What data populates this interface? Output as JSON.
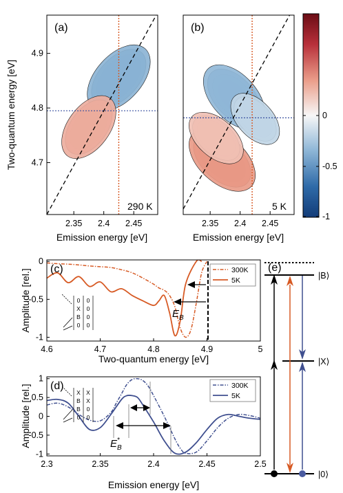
{
  "chart_data": [
    {
      "type": "heatmap",
      "panel": "(a)",
      "annotation": "290 K",
      "xlabel": "Emission energy [eV]",
      "ylabel": "Two-quantum energy [eV]",
      "xticks": [
        "2.35",
        "2.4",
        "2.45"
      ],
      "yticks": [
        "4.7",
        "4.8",
        "4.9"
      ],
      "xlim": [
        2.305,
        2.49
      ],
      "ylim": [
        4.605,
        4.97
      ],
      "guides": {
        "horizontal": 4.795,
        "vertical": 2.425
      },
      "peaks": [
        {
          "x": 2.425,
          "y": 4.855,
          "value": -1.0
        },
        {
          "x": 2.375,
          "y": 4.765,
          "value": 0.8
        }
      ]
    },
    {
      "type": "heatmap",
      "panel": "(b)",
      "annotation": "5 K",
      "xlabel": "Emission energy [eV]",
      "xticks": [
        "2.35",
        "2.4",
        "2.45"
      ],
      "xlim": [
        2.305,
        2.49
      ],
      "ylim": [
        4.605,
        4.97
      ],
      "guides": {
        "horizontal": 4.782,
        "vertical": 2.42
      },
      "peaks": [
        {
          "x": 2.39,
          "y": 4.82,
          "value": -0.95
        },
        {
          "x": 2.37,
          "y": 4.705,
          "value": 1.0
        },
        {
          "x": 2.36,
          "y": 4.745,
          "value": 0.6
        },
        {
          "x": 2.425,
          "y": 4.78,
          "value": -0.5
        }
      ]
    },
    {
      "type": "colorbar",
      "ticks": [
        "0",
        "-0.5",
        "-1"
      ],
      "range": [
        -1,
        1
      ]
    },
    {
      "type": "line",
      "panel": "(c)",
      "xlabel": "Two-quantum energy [eV]",
      "ylabel": "Amplitude [rel.]",
      "xticks": [
        "4.6",
        "4.7",
        "4.8",
        "4.9",
        "5"
      ],
      "yticks": [
        "0",
        "-0.5",
        "-1"
      ],
      "xlim": [
        4.6,
        5.0
      ],
      "ylim": [
        -1.05,
        0.02
      ],
      "annotation": "E_B",
      "marker_x": 4.84,
      "series": [
        {
          "name": "300K",
          "style": "dash-dot",
          "color": "#d75a24",
          "x": [
            4.6,
            4.62,
            4.65,
            4.68,
            4.7,
            4.72,
            4.74,
            4.76,
            4.78,
            4.8,
            4.81,
            4.82,
            4.83,
            4.84,
            4.85,
            4.86,
            4.87,
            4.88,
            4.89,
            4.9
          ],
          "y": [
            -0.02,
            -0.03,
            -0.04,
            -0.06,
            -0.07,
            -0.08,
            -0.11,
            -0.15,
            -0.22,
            -0.3,
            -0.35,
            -0.38,
            -0.45,
            -0.6,
            -0.88,
            -1.0,
            -0.9,
            -0.55,
            -0.15,
            0.0
          ]
        },
        {
          "name": "5K",
          "style": "solid",
          "color": "#d75a24",
          "x": [
            4.6,
            4.62,
            4.64,
            4.66,
            4.68,
            4.7,
            4.72,
            4.74,
            4.76,
            4.78,
            4.8,
            4.81,
            4.82,
            4.83,
            4.84,
            4.85,
            4.86,
            4.88,
            4.89
          ],
          "y": [
            -0.22,
            -0.15,
            -0.28,
            -0.2,
            -0.33,
            -0.27,
            -0.4,
            -0.36,
            -0.45,
            -0.52,
            -0.58,
            -0.52,
            -0.45,
            -0.68,
            -0.98,
            -0.78,
            -0.3,
            0.0,
            0.0
          ]
        }
      ]
    },
    {
      "type": "line",
      "panel": "(d)",
      "xlabel": "Emission energy [eV]",
      "ylabel": "Amplitude [rel.]",
      "xticks": [
        "2.3",
        "2.35",
        "2.4",
        "2.45",
        "2.5"
      ],
      "yticks": [
        "1",
        "0.5",
        "0",
        "-0.5",
        "-1"
      ],
      "xlim": [
        2.3,
        2.5
      ],
      "ylim": [
        -1.05,
        1.05
      ],
      "annotation": "E_B^*",
      "series": [
        {
          "name": "300K",
          "style": "dash-dot",
          "color": "#3f4f8f",
          "x": [
            2.3,
            2.31,
            2.32,
            2.33,
            2.34,
            2.35,
            2.36,
            2.365,
            2.37,
            2.375,
            2.38,
            2.385,
            2.39,
            2.395,
            2.4,
            2.41,
            2.42,
            2.425,
            2.43,
            2.44,
            2.45,
            2.46,
            2.47,
            2.48,
            2.49,
            2.5
          ],
          "y": [
            0.3,
            0.35,
            0.25,
            0.05,
            -0.1,
            -0.12,
            0.1,
            0.35,
            0.6,
            0.85,
            0.98,
            1.0,
            0.95,
            0.8,
            0.55,
            0.0,
            -0.6,
            -0.85,
            -0.98,
            -0.95,
            -0.65,
            -0.3,
            -0.05,
            0.05,
            0.02,
            -0.05
          ]
        },
        {
          "name": "5K",
          "style": "solid",
          "color": "#3f4f8f",
          "x": [
            2.3,
            2.31,
            2.32,
            2.33,
            2.34,
            2.35,
            2.36,
            2.37,
            2.375,
            2.38,
            2.385,
            2.39,
            2.4,
            2.41,
            2.42,
            2.43,
            2.44,
            2.45,
            2.46,
            2.47,
            2.48,
            2.49,
            2.5
          ],
          "y": [
            0.42,
            0.45,
            0.35,
            0.0,
            -0.35,
            -0.3,
            0.05,
            0.45,
            0.55,
            0.55,
            0.5,
            0.3,
            -0.15,
            -0.65,
            -0.98,
            -0.95,
            -0.7,
            -0.35,
            -0.05,
            0.05,
            0.0,
            -0.05,
            -0.08
          ]
        }
      ]
    },
    {
      "type": "diagram",
      "panel": "(e)",
      "levels": [
        "|B⟩",
        "|X⟩",
        "|0⟩"
      ]
    }
  ],
  "feynman": {
    "c_rows": [
      [
        "0",
        "0"
      ],
      [
        "X",
        "0"
      ],
      [
        "B",
        "0"
      ],
      [
        "0",
        "0"
      ]
    ],
    "d_rows": [
      [
        "X",
        "X"
      ],
      [
        "B",
        "X"
      ],
      [
        "B",
        "0"
      ],
      [
        "0",
        "0"
      ]
    ]
  }
}
